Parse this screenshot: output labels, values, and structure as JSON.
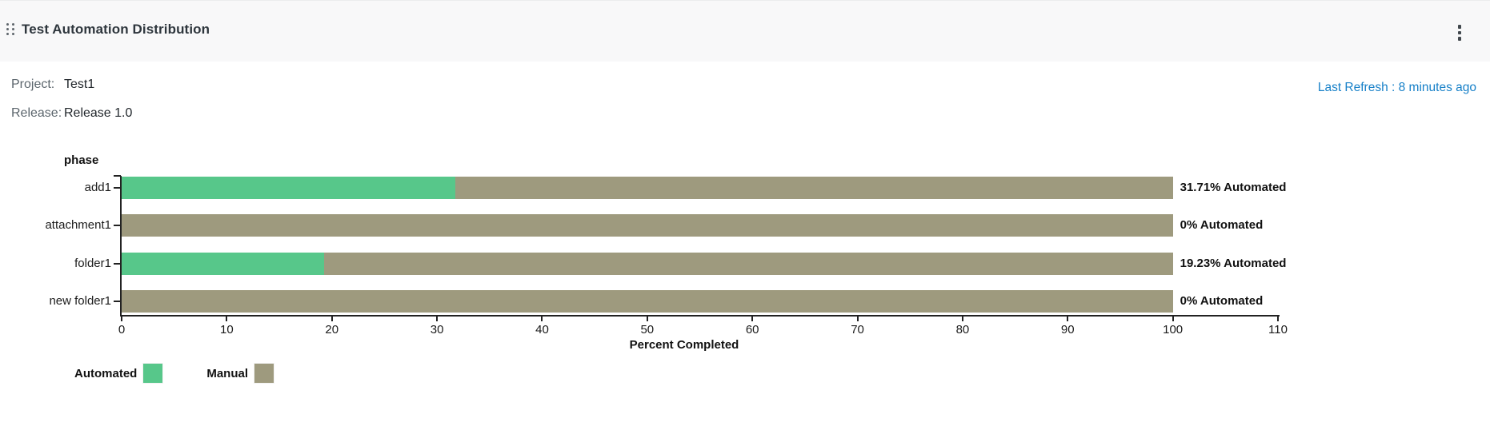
{
  "header": {
    "title": "Test Automation Distribution",
    "drag_handle_icon": "drag-indicator",
    "menu_icon": "more-vert"
  },
  "meta": {
    "project_label": "Project:",
    "project_value": "Test1",
    "release_label": "Release:",
    "release_value": "Release 1.0",
    "last_refresh": "Last Refresh : 8 minutes ago",
    "last_refresh_color": "#1780c8"
  },
  "chart_data": {
    "type": "bar",
    "orientation": "horizontal",
    "stacked": true,
    "title": "",
    "ylabel": "phase",
    "xlabel": "Percent Completed",
    "categories": [
      "add1",
      "attachment1",
      "folder1",
      "new folder1"
    ],
    "series": [
      {
        "name": "Automated",
        "color": "#57c78a",
        "values": [
          31.71,
          0,
          19.23,
          0
        ]
      },
      {
        "name": "Manual",
        "color": "#9e9a7e",
        "values": [
          68.29,
          100,
          80.77,
          100
        ]
      }
    ],
    "bar_labels": [
      "31.71% Automated",
      "0% Automated",
      "19.23% Automated",
      "0% Automated"
    ],
    "xlim": [
      0,
      110
    ],
    "xticks": [
      0,
      10,
      20,
      30,
      40,
      50,
      60,
      70,
      80,
      90,
      100,
      110
    ],
    "grid": false,
    "legend_position": "bottom-left",
    "legend": [
      {
        "label": "Automated",
        "color": "#57c78a"
      },
      {
        "label": "Manual",
        "color": "#9e9a7e"
      }
    ]
  }
}
